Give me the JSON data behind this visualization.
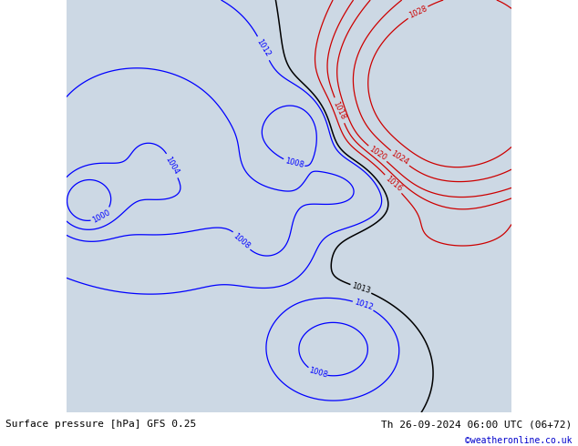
{
  "title_left": "Surface pressure [hPa] GFS 0.25",
  "title_right": "Th 26-09-2024 06:00 UTC (06+72)",
  "credit": "©weatheronline.co.uk",
  "land_color": "#b8ddb0",
  "land_edge_color": "#888888",
  "ocean_color": "#ccd8e4",
  "fig_width": 6.34,
  "fig_height": 4.9,
  "dpi": 100,
  "bottom_bar_color": "#ffffff",
  "bottom_text_color": "#000000",
  "credit_color": "#0000cc",
  "isobar_black_color": "#000000",
  "isobar_blue_color": "#0000ff",
  "isobar_red_color": "#cc0000",
  "font_size_labels": 6,
  "font_size_bottom": 8,
  "font_size_credit": 7,
  "extent": [
    90,
    160,
    -15,
    50
  ]
}
